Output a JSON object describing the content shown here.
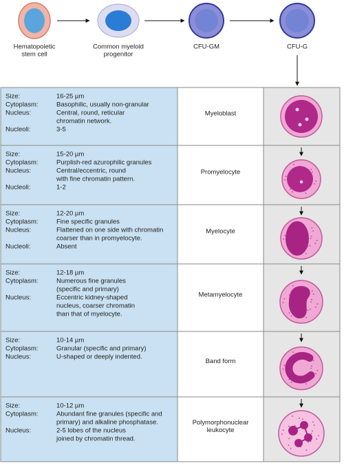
{
  "progenitors": [
    {
      "label": [
        "Hematopoietic",
        "stem cell"
      ]
    },
    {
      "label": [
        "Common myeloid",
        "progenitor"
      ]
    },
    {
      "label": [
        "CFU-GM"
      ]
    },
    {
      "label": [
        "CFU-G"
      ]
    }
  ],
  "table": {
    "rows": [
      {
        "name": [
          "Myeloblast"
        ],
        "fields": [
          {
            "label": "Size:",
            "lines": [
              "16-25 µm"
            ]
          },
          {
            "label": "Cytoplasm:",
            "lines": [
              "Basophilic, usually non-granular"
            ]
          },
          {
            "label": "Nucleus:",
            "lines": [
              "Central, round, reticular",
              "chromatin network."
            ]
          },
          {
            "label": "Nucleoli:",
            "lines": [
              "3-5"
            ]
          }
        ]
      },
      {
        "name": [
          "Promyelocyte"
        ],
        "fields": [
          {
            "label": "Size:",
            "lines": [
              "15-20 µm"
            ]
          },
          {
            "label": "Cytoplasm:",
            "lines": [
              "Purplish-red azurophilic granules"
            ]
          },
          {
            "label": "Nucleus:",
            "lines": [
              "Central/eccentric, round",
              "with fine chromatin pattern."
            ]
          },
          {
            "label": "Nucleoli:",
            "lines": [
              "1-2"
            ]
          }
        ]
      },
      {
        "name": [
          "Myelocyte"
        ],
        "fields": [
          {
            "label": "Size:",
            "lines": [
              "12-20 µm"
            ]
          },
          {
            "label": "Cytoplasm:",
            "lines": [
              "Fine specific granules"
            ]
          },
          {
            "label": "Nucleus:",
            "lines": [
              "Flattened on one side with chromatin",
              "coarser than in promyelocyte."
            ]
          },
          {
            "label": "Nucleoli:",
            "lines": [
              "Absent"
            ]
          }
        ]
      },
      {
        "name": [
          "Metamyelocyte"
        ],
        "fields": [
          {
            "label": "Size:",
            "lines": [
              "12-18 µm"
            ]
          },
          {
            "label": "Cytoplasm:",
            "lines": [
              "Numerous fine granules",
              "(specific and primary)"
            ]
          },
          {
            "label": "Nucleus:",
            "lines": [
              "Eccentric kidney-shaped",
              "nucleus, coarser chromatin",
              "than that of myelocyte."
            ]
          }
        ]
      },
      {
        "name": [
          "Band form"
        ],
        "fields": [
          {
            "label": "Size:",
            "lines": [
              "10-14 µm"
            ]
          },
          {
            "label": "Cytoplasm:",
            "lines": [
              "Granular (specific and primary)"
            ]
          },
          {
            "label": "Nucleus:",
            "lines": [
              "U-shaped or deeply indented."
            ]
          }
        ]
      },
      {
        "name": [
          "Polymorphonuclear",
          "leukocyte"
        ],
        "fields": [
          {
            "label": "Size:",
            "lines": [
              "10-12 µm"
            ]
          },
          {
            "label": "Cytoplasm:",
            "lines": [
              "Abundant fine granules (specific and",
              "primary) and alkaline phosphatase."
            ]
          },
          {
            "label": "Nucleus:",
            "lines": [
              "2-5 lobes of the nucleus",
              "joined by chromatin thread."
            ]
          }
        ]
      }
    ]
  }
}
